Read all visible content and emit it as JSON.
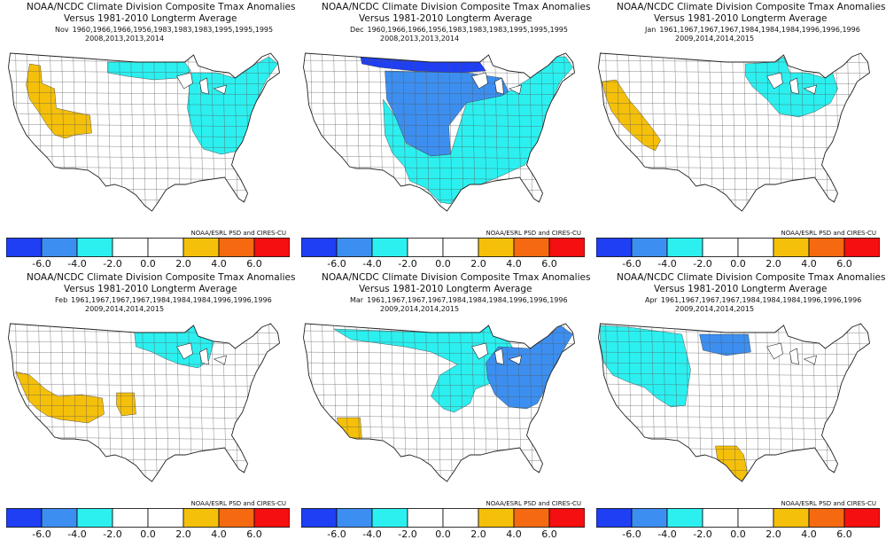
{
  "panels": [
    {
      "title": "NOAA/NCDC Climate Division Composite Tmax Anomalies (F)",
      "subtitle": "Versus 1981-2010 Longterm Average",
      "month": "Nov",
      "years1": "1960,1966,1966,1956,1983,1983,1983,1995,1995,1995",
      "years2": "2008,2013,2013,2014",
      "credit": "NOAA/ESRL PSD and CIRES-CU",
      "regions": [
        {
          "name": "west-coastal",
          "anomaly": 2.5
        },
        {
          "name": "northern-plains",
          "anomaly": -2.5
        },
        {
          "name": "east",
          "anomaly": -2.5
        }
      ]
    },
    {
      "title": "NOAA/NCDC Climate Division Composite Tmax Anomalies (F)",
      "subtitle": "Versus 1981-2010 Longterm Average",
      "month": "Dec",
      "years1": "1960,1966,1966,1956,1983,1983,1983,1995,1995,1995",
      "years2": "2008,2013,2013,2014",
      "credit": "NOAA/ESRL PSD and CIRES-CU",
      "regions": [
        {
          "name": "northern-border",
          "anomaly": -6.5
        },
        {
          "name": "central",
          "anomaly": -4.5
        },
        {
          "name": "south-east",
          "anomaly": -2.5
        }
      ]
    },
    {
      "title": "NOAA/NCDC Climate Division Composite Tmax Anomalies (F)",
      "subtitle": "Versus 1981-2010 Longterm Average",
      "month": "Jan",
      "years1": "1961,1967,1967,1967,1984,1984,1984,1996,1996,1996",
      "years2": "2009,2014,2014,2015",
      "credit": "NOAA/ESRL PSD and CIRES-CU",
      "regions": [
        {
          "name": "california",
          "anomaly": 2.5
        },
        {
          "name": "great-lakes",
          "anomaly": -2.5
        }
      ]
    },
    {
      "title": "NOAA/NCDC Climate Division Composite Tmax Anomalies (F)",
      "subtitle": "Versus 1981-2010 Longterm Average",
      "month": "Feb",
      "years1": "1961,1967,1967,1967,1984,1984,1984,1996,1996,1996",
      "years2": "2009,2014,2014,2015",
      "credit": "NOAA/ESRL PSD and CIRES-CU",
      "regions": [
        {
          "name": "southwest",
          "anomaly": 2.5
        },
        {
          "name": "colorado",
          "anomaly": 2.5
        },
        {
          "name": "north-central",
          "anomaly": -2.5
        }
      ]
    },
    {
      "title": "NOAA/NCDC Climate Division Composite Tmax Anomalies (F)",
      "subtitle": "Versus 1981-2010 Longterm Average",
      "month": "Mar",
      "years1": "1961,1967,1967,1967,1984,1984,1984,1996,1996,1996",
      "years2": "2009,2014,2014,2015",
      "credit": "NOAA/ESRL PSD and CIRES-CU",
      "regions": [
        {
          "name": "arizona",
          "anomaly": 2.5
        },
        {
          "name": "northern-tier",
          "anomaly": -2.5
        },
        {
          "name": "northeast",
          "anomaly": -4.5
        }
      ]
    },
    {
      "title": "NOAA/NCDC Climate Division Composite Tmax Anomalies (F)",
      "subtitle": "Versus 1981-2010 Longterm Average",
      "month": "Apr",
      "years1": "1961,1967,1967,1967,1984,1984,1984,1996,1996,1996",
      "years2": "2009,2014,2014,2015",
      "credit": "NOAA/ESRL PSD and CIRES-CU",
      "regions": [
        {
          "name": "northwest",
          "anomaly": -2.5
        },
        {
          "name": "dakotas",
          "anomaly": -4.5
        },
        {
          "name": "south-texas",
          "anomaly": 2.5
        }
      ]
    }
  ],
  "colorbar": {
    "colors": [
      "#1f3ff5",
      "#3c8ff0",
      "#2cf0f0",
      "#ffffff",
      "#ffffff",
      "#f5c00a",
      "#f56a10",
      "#f50f10"
    ],
    "ticks": [
      "-6.0",
      "-4.0",
      "-2.0",
      "0.0",
      "2.0",
      "4.0",
      "6.0"
    ]
  }
}
